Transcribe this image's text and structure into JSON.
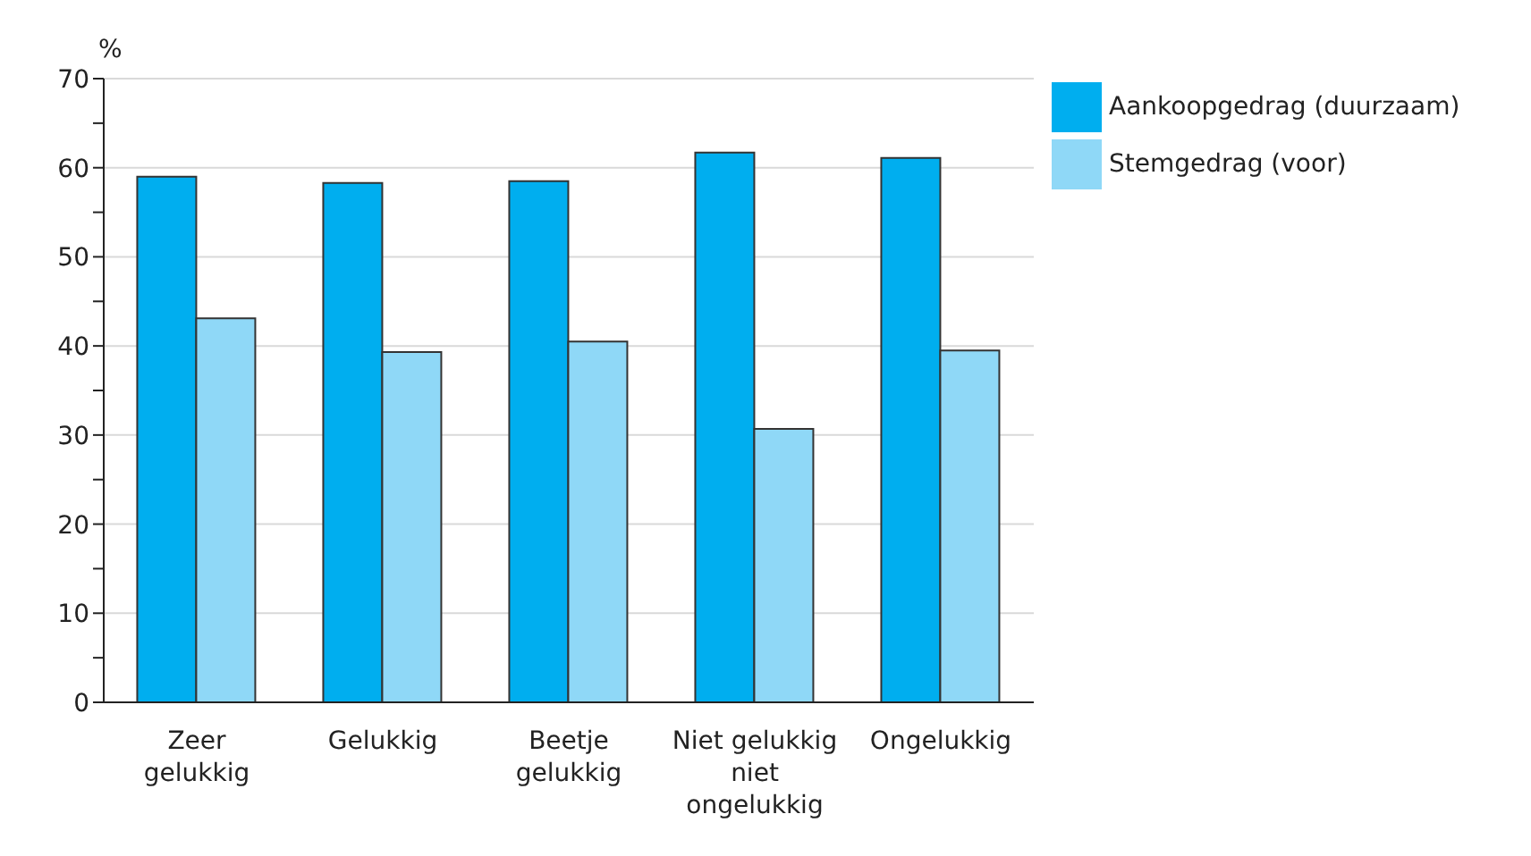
{
  "chart_data": {
    "type": "bar",
    "ylabel": "%",
    "categories": [
      "Zeer\ngelukkig",
      "Gelukkig",
      "Beetje\ngelukkig",
      "Niet gelukkig\nniet\nongelukkig",
      "Ongelukkig"
    ],
    "series": [
      {
        "name": "Aankoopgedrag (duurzaam)",
        "color": "#00aeef",
        "values": [
          59.0,
          58.3,
          58.5,
          61.7,
          61.1
        ]
      },
      {
        "name": "Stemgedrag (voor)",
        "color": "#8fd8f7",
        "values": [
          43.1,
          39.3,
          40.5,
          30.7,
          39.5
        ]
      }
    ],
    "ylim": [
      0,
      70
    ],
    "yticks": [
      0,
      {
        "value": 5,
        "label": null
      },
      10,
      {
        "value": 15,
        "label": null
      },
      20,
      {
        "value": 25,
        "label": null
      },
      30,
      {
        "value": 35,
        "label": null
      },
      40,
      {
        "value": 45,
        "label": null
      },
      50,
      {
        "value": 55,
        "label": null
      },
      60,
      {
        "value": 65,
        "label": null
      },
      70
    ],
    "grid": "y",
    "legend": "top right"
  }
}
